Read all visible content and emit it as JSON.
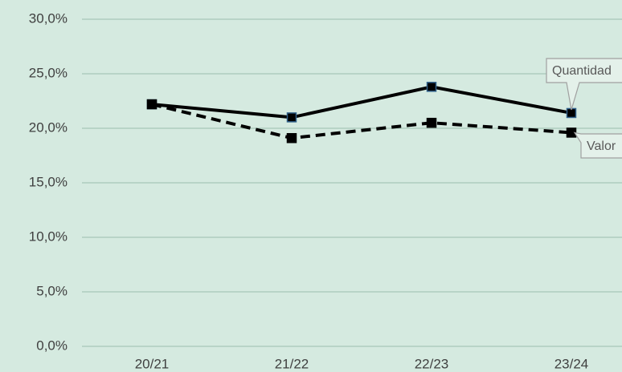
{
  "chart_data": {
    "type": "line",
    "categories": [
      "20/21",
      "21/22",
      "22/23",
      "23/24"
    ],
    "series": [
      {
        "name": "Quantidad",
        "color": "#000000",
        "values": [
          22.2,
          21.0,
          23.8,
          21.4
        ]
      },
      {
        "name": "Valor",
        "color": "#000000",
        "values": [
          22.2,
          19.1,
          20.5,
          19.6
        ]
      }
    ],
    "ylim": [
      0,
      30
    ],
    "yticks": [
      {
        "value": 0,
        "label": "0,0%"
      },
      {
        "value": 5,
        "label": "5,0%"
      },
      {
        "value": 10,
        "label": "10,0%"
      },
      {
        "value": 15,
        "label": "15,0%"
      },
      {
        "value": 20,
        "label": "20,0%"
      },
      {
        "value": 25,
        "label": "25,0%"
      },
      {
        "value": 30,
        "label": "30,0%"
      }
    ],
    "grid": true
  }
}
